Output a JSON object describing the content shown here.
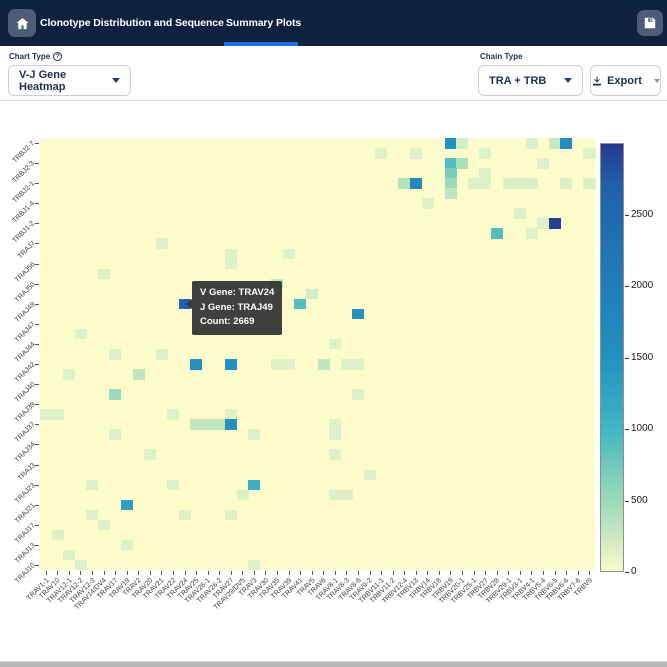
{
  "navbar": {
    "tabs": [
      {
        "label": "Clonotype Distribution and Sequence",
        "active": false
      },
      {
        "label": "Summary Plots",
        "active": true
      }
    ],
    "accent_color": "#1e6fe8",
    "background_color": "#0e2240"
  },
  "controls": {
    "chart_type_label": "Chart Type",
    "chart_type_value": "V-J Gene Heatmap",
    "chain_type_label": "Chain Type",
    "chain_type_value": "TRA + TRB",
    "export_label": "Export"
  },
  "tooltip": {
    "line1": "V Gene: TRAV24",
    "line2": "J Gene: TRAJ49",
    "line3": "Count: 2669"
  },
  "chart_data": {
    "type": "heatmap",
    "title": "V-J Gene Heatmap",
    "n_cols": 48,
    "n_rows": 43,
    "x_labels": [
      "TRAV1-1",
      "TRAV10",
      "TRAV12-1",
      "TRAV12-2",
      "TRAV12-3",
      "TRAV14/DV4",
      "TRAV17",
      "TRAV19",
      "TRAV2",
      "TRAV20",
      "TRAV21",
      "TRAV22",
      "TRAV24",
      "TRAV25",
      "TRAV26-1",
      "TRAV26-2",
      "TRAV27",
      "TRAV29/DV5",
      "TRAV3",
      "TRAV30",
      "TRAV35",
      "TRAV39",
      "TRAV41",
      "TRAV5",
      "TRAV6",
      "TRAV8-1",
      "TRAV8-3",
      "TRAV8-6",
      "TRAV9-2",
      "TRBV11-1",
      "TRBV11-2",
      "TRBV12-4",
      "TRBV13",
      "TRBV14",
      "TRBV18",
      "TRBV19",
      "TRBV20-1",
      "TRBV25-1",
      "TRBV27",
      "TRBV28",
      "TRBV29-1",
      "TRBV3-1",
      "TRBV4-1",
      "TRBV5-4",
      "TRBV6-5",
      "TRBV6-6",
      "TRBV7-6",
      "TRBV9"
    ],
    "y_labels": [
      "TRBJ2-7",
      "TRBJ2-3",
      "TRBJ2-1",
      "TRBJ1-4",
      "TRBJ1-2",
      "TRAJ7",
      "TRAJ56",
      "TRAJ50",
      "TRAJ49",
      "TRAJ47",
      "TRAJ44",
      "TRAJ42",
      "TRAJ40",
      "TRAJ39",
      "TRAJ37",
      "TRAJ34",
      "TRAJ3",
      "TRAJ23",
      "TRAJ21",
      "TRAJ17",
      "TRAJ13",
      "TRAJ10"
    ],
    "y_label_row_step": 2,
    "colorbar": {
      "ticks": [
        0,
        500,
        1000,
        1500,
        2000,
        2500
      ],
      "vmax": 3000,
      "colorscale": [
        [
          0,
          "#fafac8"
        ],
        [
          150,
          "#def0c5"
        ],
        [
          350,
          "#b4e2bd"
        ],
        [
          600,
          "#8ad4b8"
        ],
        [
          1000,
          "#41b6c4"
        ],
        [
          1500,
          "#2291c0"
        ],
        [
          2000,
          "#207db7"
        ],
        [
          2700,
          "#2063ab"
        ],
        [
          3000,
          "#253a92"
        ]
      ]
    },
    "hovered_cell": {
      "col": 12,
      "row": 16,
      "v_gene": "TRAV24",
      "j_gene": "TRAJ49",
      "count": 2669
    },
    "cells": [
      [
        35,
        0,
        1500
      ],
      [
        36,
        0,
        200
      ],
      [
        42,
        0,
        150
      ],
      [
        44,
        0,
        250
      ],
      [
        45,
        0,
        1600
      ],
      [
        29,
        1,
        150
      ],
      [
        32,
        1,
        150
      ],
      [
        38,
        1,
        150
      ],
      [
        47,
        1,
        150
      ],
      [
        35,
        2,
        900
      ],
      [
        36,
        2,
        400
      ],
      [
        43,
        2,
        150
      ],
      [
        35,
        3,
        700
      ],
      [
        38,
        3,
        150
      ],
      [
        31,
        4,
        350
      ],
      [
        32,
        4,
        1700
      ],
      [
        35,
        4,
        500
      ],
      [
        37,
        4,
        150
      ],
      [
        38,
        4,
        150
      ],
      [
        40,
        4,
        150
      ],
      [
        41,
        4,
        150
      ],
      [
        42,
        4,
        150
      ],
      [
        45,
        4,
        150
      ],
      [
        47,
        4,
        150
      ],
      [
        35,
        5,
        300
      ],
      [
        33,
        6,
        150
      ],
      [
        41,
        7,
        150
      ],
      [
        43,
        8,
        150
      ],
      [
        44,
        8,
        2950
      ],
      [
        39,
        9,
        900
      ],
      [
        42,
        9,
        150
      ],
      [
        10,
        10,
        150
      ],
      [
        16,
        11,
        150
      ],
      [
        21,
        11,
        150
      ],
      [
        16,
        12,
        150
      ],
      [
        5,
        13,
        150
      ],
      [
        20,
        14,
        300
      ],
      [
        23,
        15,
        200
      ],
      [
        12,
        16,
        2669
      ],
      [
        22,
        16,
        900
      ],
      [
        27,
        17,
        1500
      ],
      [
        3,
        19,
        150
      ],
      [
        25,
        20,
        150
      ],
      [
        6,
        21,
        150
      ],
      [
        10,
        21,
        150
      ],
      [
        13,
        22,
        1500
      ],
      [
        16,
        22,
        1500
      ],
      [
        20,
        22,
        150
      ],
      [
        21,
        22,
        150
      ],
      [
        24,
        22,
        300
      ],
      [
        26,
        22,
        150
      ],
      [
        27,
        22,
        150
      ],
      [
        2,
        23,
        150
      ],
      [
        8,
        23,
        300
      ],
      [
        6,
        25,
        500
      ],
      [
        27,
        25,
        150
      ],
      [
        0,
        27,
        150
      ],
      [
        1,
        27,
        150
      ],
      [
        11,
        27,
        150
      ],
      [
        16,
        27,
        150
      ],
      [
        13,
        28,
        300
      ],
      [
        14,
        28,
        300
      ],
      [
        15,
        28,
        300
      ],
      [
        16,
        28,
        1500
      ],
      [
        25,
        28,
        150
      ],
      [
        6,
        29,
        150
      ],
      [
        18,
        29,
        150
      ],
      [
        25,
        29,
        150
      ],
      [
        9,
        31,
        150
      ],
      [
        25,
        31,
        150
      ],
      [
        28,
        33,
        150
      ],
      [
        4,
        34,
        150
      ],
      [
        11,
        34,
        150
      ],
      [
        18,
        34,
        1100
      ],
      [
        17,
        35,
        150
      ],
      [
        25,
        35,
        150
      ],
      [
        26,
        35,
        150
      ],
      [
        7,
        36,
        1300
      ],
      [
        4,
        37,
        150
      ],
      [
        12,
        37,
        150
      ],
      [
        16,
        37,
        150
      ],
      [
        5,
        38,
        150
      ],
      [
        1,
        39,
        150
      ],
      [
        7,
        40,
        150
      ],
      [
        2,
        41,
        150
      ],
      [
        3,
        42,
        150
      ],
      [
        18,
        42,
        150
      ]
    ]
  }
}
